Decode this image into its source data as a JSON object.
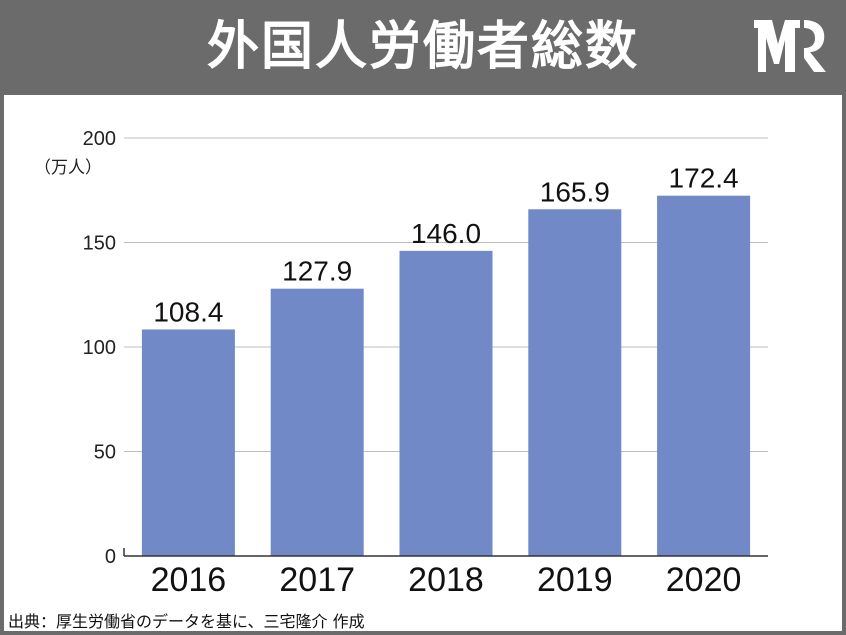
{
  "header": {
    "title": "外国人労働者総数",
    "logo_icon": "brand-logo-icon"
  },
  "chart_data": {
    "type": "bar",
    "title": "外国人労働者総数",
    "unit_label": "（万人）",
    "categories": [
      "2016",
      "2017",
      "2018",
      "2019",
      "2020"
    ],
    "values": [
      108.4,
      127.9,
      146.0,
      165.9,
      172.4
    ],
    "value_labels": [
      "108.4",
      "127.9",
      "146.0",
      "165.9",
      "172.4"
    ],
    "y_ticks": [
      0,
      50,
      100,
      150,
      200
    ],
    "ylim": [
      0,
      200
    ],
    "grid": true,
    "bar_color": "#7189c7",
    "grid_color": "#bdbdbd"
  },
  "source": "出典：厚生労働省のデータを基に、三宅隆介 作成",
  "colors": {
    "header_bg": "#6b6b6b",
    "header_text": "#ffffff"
  }
}
